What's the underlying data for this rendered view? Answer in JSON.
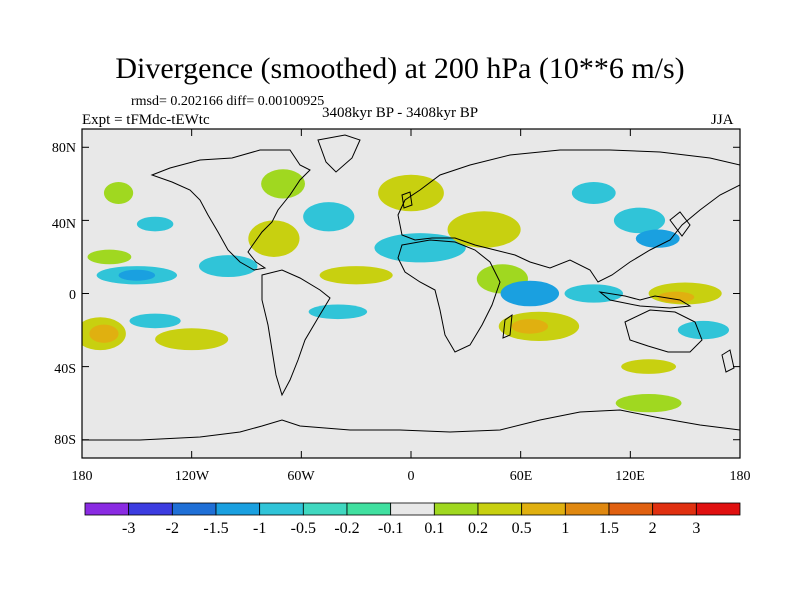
{
  "title": "Divergence (smoothed) at 200 hPa (10**6 m/s)",
  "stats": "rmsd= 0.202166 diff= 0.00100925",
  "experiment": "Expt = tFMdc-tEWtc",
  "period": "3408kyr BP - 3408kyr BP",
  "season": "JJA",
  "lat_ticks": [
    "80N",
    "40N",
    "0",
    "40S",
    "80S"
  ],
  "lon_ticks": [
    "180",
    "120W",
    "60W",
    "0",
    "60E",
    "120E",
    "180"
  ],
  "colorbar": {
    "colors": [
      "#8a2be2",
      "#3c3ce0",
      "#1f6fd6",
      "#1aa0e0",
      "#30c4d8",
      "#40d8c0",
      "#40e0a0",
      "#e8e8e8",
      "#a0d820",
      "#c8d010",
      "#e0b010",
      "#e08810",
      "#e06010",
      "#e03010",
      "#e01010"
    ],
    "labels": [
      "-3",
      "-2",
      "-1.5",
      "-1",
      "-0.5",
      "-0.2",
      "-0.1",
      "0.1",
      "0.2",
      "0.5",
      "1",
      "1.5",
      "2",
      "3"
    ]
  },
  "fields": [
    {
      "lon": -170,
      "lat": -22,
      "rx": 14,
      "ry": 9,
      "color": "#c8d010"
    },
    {
      "lon": -168,
      "lat": -22,
      "rx": 8,
      "ry": 5,
      "color": "#e0b010"
    },
    {
      "lon": -150,
      "lat": 10,
      "rx": 22,
      "ry": 5,
      "color": "#30c4d8"
    },
    {
      "lon": -150,
      "lat": 10,
      "rx": 10,
      "ry": 3,
      "color": "#1aa0e0"
    },
    {
      "lon": -140,
      "lat": -15,
      "rx": 14,
      "ry": 4,
      "color": "#30c4d8"
    },
    {
      "lon": -165,
      "lat": 20,
      "rx": 12,
      "ry": 4,
      "color": "#a0d820"
    },
    {
      "lon": -120,
      "lat": -25,
      "rx": 20,
      "ry": 6,
      "color": "#c8d010"
    },
    {
      "lon": -100,
      "lat": 15,
      "rx": 16,
      "ry": 6,
      "color": "#30c4d8"
    },
    {
      "lon": -75,
      "lat": 30,
      "rx": 14,
      "ry": 10,
      "color": "#c8d010"
    },
    {
      "lon": -70,
      "lat": 60,
      "rx": 12,
      "ry": 8,
      "color": "#a0d820"
    },
    {
      "lon": -45,
      "lat": 42,
      "rx": 14,
      "ry": 8,
      "color": "#30c4d8"
    },
    {
      "lon": -30,
      "lat": 10,
      "rx": 20,
      "ry": 5,
      "color": "#c8d010"
    },
    {
      "lon": -40,
      "lat": -10,
      "rx": 16,
      "ry": 4,
      "color": "#30c4d8"
    },
    {
      "lon": -140,
      "lat": 38,
      "rx": 10,
      "ry": 4,
      "color": "#30c4d8"
    },
    {
      "lon": 0,
      "lat": 55,
      "rx": 18,
      "ry": 10,
      "color": "#c8d010"
    },
    {
      "lon": 5,
      "lat": 25,
      "rx": 25,
      "ry": 8,
      "color": "#30c4d8"
    },
    {
      "lon": 40,
      "lat": 35,
      "rx": 20,
      "ry": 10,
      "color": "#c8d010"
    },
    {
      "lon": 50,
      "lat": 8,
      "rx": 14,
      "ry": 8,
      "color": "#a0d820"
    },
    {
      "lon": 65,
      "lat": 0,
      "rx": 16,
      "ry": 7,
      "color": "#1aa0e0"
    },
    {
      "lon": 70,
      "lat": -18,
      "rx": 22,
      "ry": 8,
      "color": "#c8d010"
    },
    {
      "lon": 65,
      "lat": -18,
      "rx": 10,
      "ry": 4,
      "color": "#e0b010"
    },
    {
      "lon": 100,
      "lat": 0,
      "rx": 16,
      "ry": 5,
      "color": "#30c4d8"
    },
    {
      "lon": 125,
      "lat": 40,
      "rx": 14,
      "ry": 7,
      "color": "#30c4d8"
    },
    {
      "lon": 135,
      "lat": 30,
      "rx": 12,
      "ry": 5,
      "color": "#1aa0e0"
    },
    {
      "lon": 150,
      "lat": 0,
      "rx": 20,
      "ry": 6,
      "color": "#c8d010"
    },
    {
      "lon": 145,
      "lat": -2,
      "rx": 10,
      "ry": 3,
      "color": "#e0b010"
    },
    {
      "lon": 160,
      "lat": -20,
      "rx": 14,
      "ry": 5,
      "color": "#30c4d8"
    },
    {
      "lon": 130,
      "lat": -60,
      "rx": 18,
      "ry": 5,
      "color": "#a0d820"
    },
    {
      "lon": -160,
      "lat": 55,
      "rx": 8,
      "ry": 6,
      "color": "#a0d820"
    },
    {
      "lon": 100,
      "lat": 55,
      "rx": 12,
      "ry": 6,
      "color": "#30c4d8"
    },
    {
      "lon": 130,
      "lat": -40,
      "rx": 15,
      "ry": 4,
      "color": "#c8d010"
    }
  ]
}
